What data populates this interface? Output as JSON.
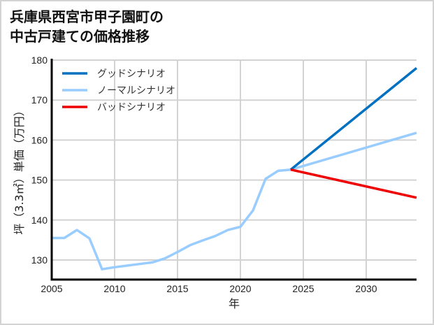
{
  "title": {
    "line1": "兵庫県西宮市甲子園町の",
    "line2": "中古戸建ての価格推移"
  },
  "chart_data": {
    "type": "line",
    "title": "兵庫県西宮市甲子園町の中古戸建ての価格推移",
    "xlabel": "年",
    "ylabel": "坪（3.3㎡）単価（万円）",
    "xlim": [
      2005,
      2034
    ],
    "ylim": [
      125.5,
      180
    ],
    "xticks": [
      2005,
      2010,
      2015,
      2020,
      2025,
      2030
    ],
    "yticks": [
      130,
      140,
      150,
      160,
      170,
      180
    ],
    "grid": true,
    "legend_position": "upper left",
    "series": [
      {
        "name": "グッドシナリオ",
        "color": "#0070c0",
        "x": [
          2024,
          2034
        ],
        "values": [
          152.6,
          178.0
        ]
      },
      {
        "name": "ノーマルシナリオ",
        "color": "#99ccff",
        "x": [
          2005,
          2006,
          2007,
          2008,
          2009,
          2010,
          2011,
          2012,
          2013,
          2014,
          2015,
          2016,
          2017,
          2018,
          2019,
          2020,
          2021,
          2022,
          2023,
          2024,
          2034
        ],
        "values": [
          135.5,
          135.5,
          137.5,
          135.4,
          127.7,
          128.2,
          128.6,
          129.0,
          129.4,
          130.4,
          132.0,
          133.7,
          134.9,
          136.0,
          137.5,
          138.3,
          142.4,
          150.3,
          152.3,
          152.6,
          161.8
        ]
      },
      {
        "name": "バッドシナリオ",
        "color": "#ee0000",
        "x": [
          2024,
          2034
        ],
        "values": [
          152.6,
          145.6
        ]
      }
    ]
  },
  "legend": [
    {
      "label": "グッドシナリオ",
      "color": "#0070c0"
    },
    {
      "label": "ノーマルシナリオ",
      "color": "#99ccff"
    },
    {
      "label": "バッドシナリオ",
      "color": "#ee0000"
    }
  ]
}
